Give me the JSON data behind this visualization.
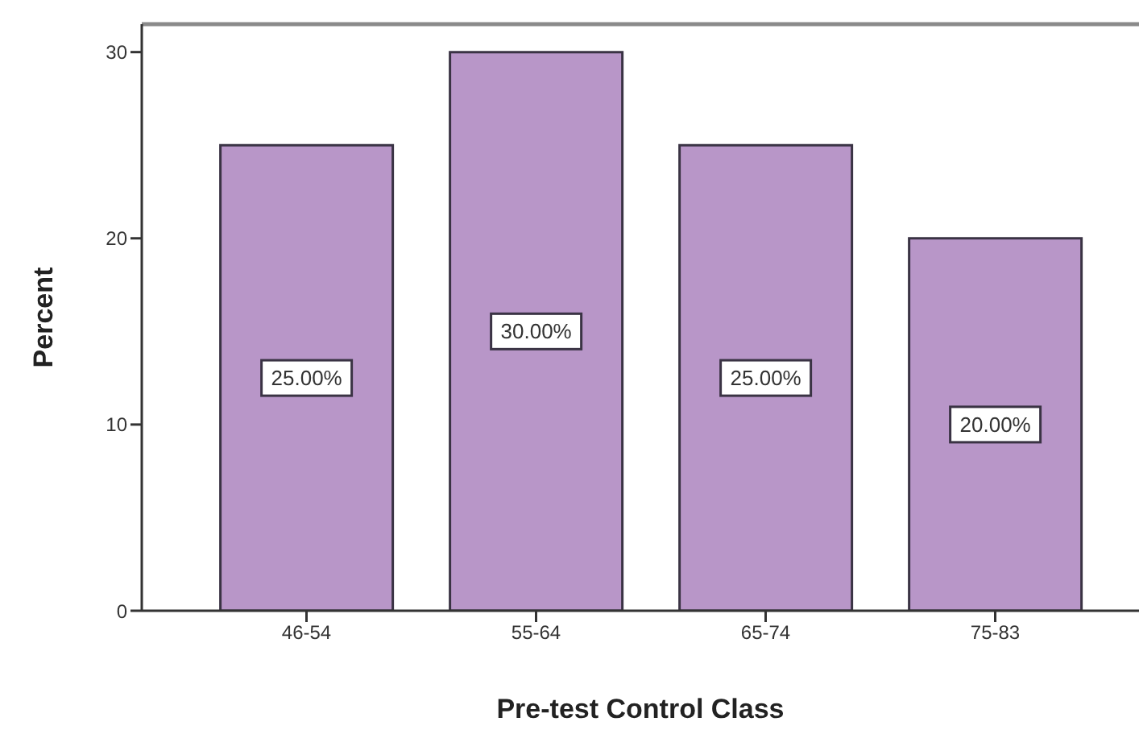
{
  "chart_data": {
    "type": "bar",
    "xlabel": "Pre-test Control Class",
    "ylabel": "Percent",
    "categories": [
      "46-54",
      "55-64",
      "65-74",
      "75-83"
    ],
    "values": [
      25,
      30,
      25,
      20
    ],
    "color": "#b896c8",
    "value_labels": [
      "25.00%",
      "30.00%",
      "25.00%",
      "20.00%"
    ],
    "ylim": [
      0,
      31.5
    ],
    "yticks": [
      0,
      10,
      20,
      30
    ]
  }
}
